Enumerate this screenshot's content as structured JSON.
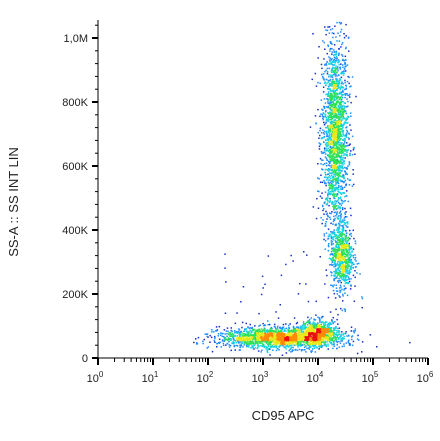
{
  "chart_data": {
    "type": "scatter",
    "style": "density-colored flow cytometry dot plot",
    "xlabel": "CD95 APC",
    "ylabel": "SS-A :: SS INT LIN",
    "x_scale": "log",
    "xlim": [
      1,
      1000000
    ],
    "ylim": [
      0,
      1050000
    ],
    "grid": false,
    "x_ticks": [
      {
        "value": 1,
        "base": "10",
        "exp": "0"
      },
      {
        "value": 10,
        "base": "10",
        "exp": "1"
      },
      {
        "value": 100,
        "base": "10",
        "exp": "2"
      },
      {
        "value": 1000,
        "base": "10",
        "exp": "3"
      },
      {
        "value": 10000,
        "base": "10",
        "exp": "4"
      },
      {
        "value": 100000,
        "base": "10",
        "exp": "5"
      },
      {
        "value": 1000000,
        "base": "10",
        "exp": "6"
      }
    ],
    "y_ticks": [
      {
        "value": 0,
        "label": "0"
      },
      {
        "value": 200000,
        "label": "200K"
      },
      {
        "value": 400000,
        "label": "400K"
      },
      {
        "value": 600000,
        "label": "600K"
      },
      {
        "value": 800000,
        "label": "800K"
      },
      {
        "value": 1000000,
        "label": "1,0M"
      }
    ],
    "density_colors": [
      "#1a2ec8",
      "#1f8fff",
      "#19d3e0",
      "#2ee05a",
      "#e8e81a",
      "#ff8a00",
      "#e81010"
    ],
    "populations": [
      {
        "description": "CD95-bright, high side-scatter cluster",
        "log10_x_center": 4.3,
        "log10_x_sd": 0.12,
        "y_center": 700000,
        "y_sd": 150000,
        "weight": 0.38
      },
      {
        "description": "CD95-bright, mid side-scatter cluster",
        "log10_x_center": 4.42,
        "log10_x_sd": 0.1,
        "y_center": 320000,
        "y_sd": 55000,
        "weight": 0.14
      },
      {
        "description": "low side-scatter band",
        "log10_x_center": 3.3,
        "log10_x_sd": 0.55,
        "y_center": 65000,
        "y_sd": 16000,
        "weight": 0.36
      },
      {
        "description": "low side-scatter dense core",
        "log10_x_center": 4.0,
        "log10_x_sd": 0.18,
        "y_center": 80000,
        "y_sd": 20000,
        "weight": 0.12
      }
    ]
  }
}
